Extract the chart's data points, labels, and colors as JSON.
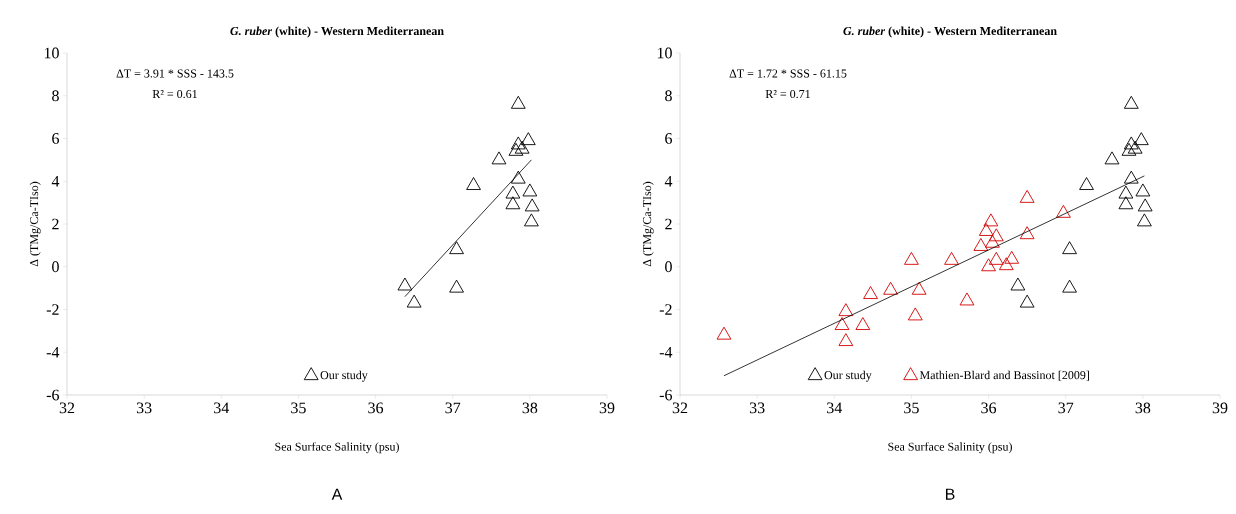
{
  "chart_data": [
    {
      "type": "scatter",
      "title": "*G. ruber* (white) - Western Mediterranean",
      "xlabel": "Sea Surface Salinity (psu)",
      "ylabel": "Δ (TMg/Ca-TIso)",
      "annotations": [
        "ΔT = 3.91 * SSS - 143.5",
        "R² = 0.61",
        "A"
      ],
      "xlim": [
        32,
        39
      ],
      "ylim": [
        -6,
        10
      ],
      "xticks": [
        32,
        33,
        34,
        35,
        36,
        37,
        38,
        39
      ],
      "yticks": [
        -6,
        -4,
        -2,
        0,
        2,
        4,
        6,
        8,
        10
      ],
      "marker": "triangle",
      "legend": "bottom",
      "grid": false,
      "series": [
        {
          "name": "Our study",
          "color": "#000000",
          "x": [
            36.38,
            36.5,
            37.05,
            37.05,
            37.27,
            37.6,
            37.85,
            37.85,
            37.82,
            37.9,
            37.98,
            37.85,
            37.78,
            37.78,
            38.0,
            38.03,
            38.02
          ],
          "values": [
            -0.9,
            -1.7,
            0.8,
            -1.0,
            3.8,
            5.0,
            7.6,
            5.7,
            5.4,
            5.5,
            5.9,
            4.1,
            3.4,
            2.9,
            3.5,
            2.8,
            2.1
          ]
        },
        {
          "type": "line",
          "marker": "none",
          "color": "#000000",
          "x": [
            36.38,
            38.02
          ],
          "values": [
            -1.4,
            5.0
          ]
        }
      ]
    },
    {
      "type": "scatter",
      "title": "*G. ruber* (white) - Western Mediterranean",
      "xlabel": "Sea Surface Salinity (psu)",
      "ylabel": "Δ (TMg/Ca-TIso)",
      "annotations": [
        "ΔT = 1.72 * SSS - 61.15",
        "R² = 0.71",
        "B"
      ],
      "xlim": [
        32,
        39
      ],
      "ylim": [
        -6,
        10
      ],
      "xticks": [
        32,
        33,
        34,
        35,
        36,
        37,
        38,
        39
      ],
      "yticks": [
        -6,
        -4,
        -2,
        0,
        2,
        4,
        6,
        8,
        10
      ],
      "marker": "triangle",
      "legend": "bottom",
      "grid": false,
      "series": [
        {
          "name": "Our study",
          "color": "#000000",
          "x": [
            36.38,
            36.5,
            37.05,
            37.05,
            37.27,
            37.6,
            37.85,
            37.85,
            37.82,
            37.9,
            37.98,
            37.85,
            37.78,
            37.78,
            38.0,
            38.03,
            38.02
          ],
          "values": [
            -0.9,
            -1.7,
            0.8,
            -1.0,
            3.8,
            5.0,
            7.6,
            5.7,
            5.4,
            5.5,
            5.9,
            4.1,
            3.4,
            2.9,
            3.5,
            2.8,
            2.1
          ]
        },
        {
          "name": "Mathien-Blard and Bassinot [2009]",
          "color": "#d40000",
          "x": [
            32.57,
            34.15,
            34.1,
            34.15,
            34.37,
            34.47,
            34.73,
            35.0,
            35.05,
            35.1,
            35.52,
            35.72,
            35.9,
            35.97,
            36.03,
            36.0,
            36.05,
            36.1,
            36.1,
            36.23,
            36.3,
            36.5,
            36.5,
            36.97
          ],
          "values": [
            -3.2,
            -2.1,
            -2.75,
            -3.5,
            -2.75,
            -1.3,
            -1.1,
            0.3,
            -2.3,
            -1.1,
            0.3,
            -1.6,
            0.95,
            1.65,
            2.1,
            0.0,
            1.1,
            1.4,
            0.3,
            0.05,
            0.35,
            3.2,
            1.5,
            2.5
          ]
        },
        {
          "type": "line",
          "marker": "none",
          "color": "#000000",
          "x": [
            32.57,
            38.02
          ],
          "values": [
            -5.1,
            4.25
          ]
        }
      ]
    }
  ]
}
